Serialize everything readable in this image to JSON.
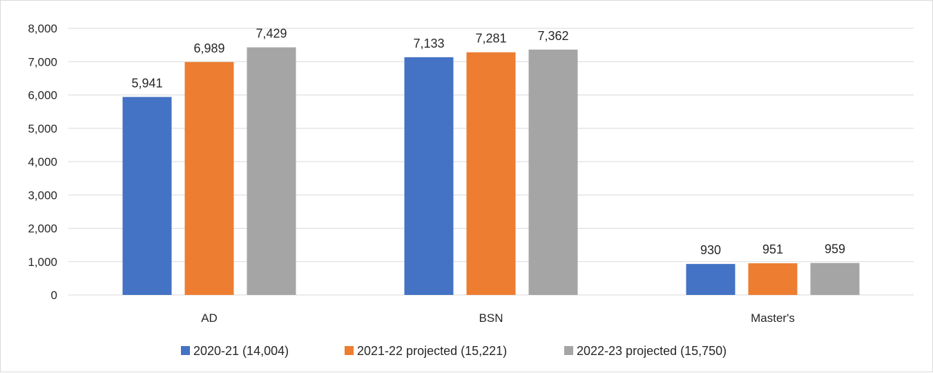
{
  "chart_data": {
    "type": "bar",
    "categories": [
      "AD",
      "BSN",
      "Master's"
    ],
    "series": [
      {
        "name": "2020-21 (14,004)",
        "color": "#4472c4",
        "values": [
          5941,
          7133,
          930
        ]
      },
      {
        "name": "2021-22 projected (15,221)",
        "color": "#ed7d31",
        "values": [
          6989,
          7281,
          951
        ]
      },
      {
        "name": "2022-23 projected (15,750)",
        "color": "#a5a5a5",
        "values": [
          7429,
          7362,
          959
        ]
      }
    ],
    "ylim": [
      0,
      8000
    ],
    "yticks": [
      0,
      1000,
      2000,
      3000,
      4000,
      5000,
      6000,
      7000,
      8000
    ],
    "ytick_labels": [
      "0",
      "1,000",
      "2,000",
      "3,000",
      "4,000",
      "5,000",
      "6,000",
      "7,000",
      "8,000"
    ],
    "data_labels": [
      [
        "5,941",
        "7,133",
        "930"
      ],
      [
        "6,989",
        "7,281",
        "951"
      ],
      [
        "7,429",
        "7,362",
        "959"
      ]
    ],
    "grid": true,
    "legend_position": "bottom",
    "gridline_color": "#d9d9d9"
  }
}
